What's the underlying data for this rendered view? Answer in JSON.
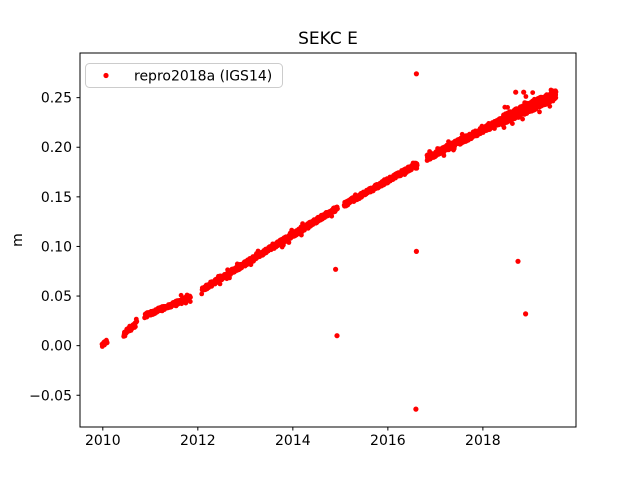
{
  "figure": {
    "background": "#ffffff",
    "frame_color": "#000000"
  },
  "chart_data": {
    "type": "scatter",
    "title": "SEKC E",
    "xlabel": "",
    "ylabel": "m",
    "grid": false,
    "marker_color": "#ff0000",
    "marker_style": "dot",
    "xlim": [
      2009.52,
      2019.96
    ],
    "ylim": [
      -0.082,
      0.295
    ],
    "xticks": [
      {
        "v": 2010,
        "label": "2010"
      },
      {
        "v": 2012,
        "label": "2012"
      },
      {
        "v": 2014,
        "label": "2014"
      },
      {
        "v": 2016,
        "label": "2016"
      },
      {
        "v": 2018,
        "label": "2018"
      }
    ],
    "yticks": [
      {
        "v": -0.05,
        "label": "−0.05"
      },
      {
        "v": 0.0,
        "label": "0.00"
      },
      {
        "v": 0.05,
        "label": "0.05"
      },
      {
        "v": 0.1,
        "label": "0.10"
      },
      {
        "v": 0.15,
        "label": "0.15"
      },
      {
        "v": 0.2,
        "label": "0.20"
      },
      {
        "v": 0.25,
        "label": "0.25"
      }
    ],
    "legend": {
      "position": "upper-left",
      "entries": [
        {
          "label": "repro2018a (IGS14)",
          "marker": "dot",
          "color": "#ff0000"
        }
      ]
    },
    "series": [
      {
        "name": "repro2018a (IGS14)",
        "color": "#ff0000",
        "trend_segments": [
          {
            "x_start": 2009.98,
            "x_end": 2010.1,
            "y_start": 0.0,
            "y_end": 0.005,
            "n_points": 14,
            "scatter": 0.0022
          },
          {
            "x_start": 2010.44,
            "x_end": 2010.72,
            "y_start": 0.012,
            "y_end": 0.023,
            "n_points": 45,
            "scatter": 0.0028
          },
          {
            "x_start": 2010.88,
            "x_end": 2011.85,
            "y_start": 0.03,
            "y_end": 0.049,
            "n_points": 190,
            "scatter": 0.0022
          },
          {
            "x_start": 2012.08,
            "x_end": 2014.94,
            "y_start": 0.056,
            "y_end": 0.139,
            "n_points": 580,
            "scatter": 0.0024
          },
          {
            "x_start": 2015.08,
            "x_end": 2016.62,
            "y_start": 0.142,
            "y_end": 0.183,
            "n_points": 310,
            "scatter": 0.0024
          },
          {
            "x_start": 2016.82,
            "x_end": 2018.4,
            "y_start": 0.189,
            "y_end": 0.227,
            "n_points": 330,
            "scatter": 0.003
          },
          {
            "x_start": 2018.4,
            "x_end": 2019.54,
            "y_start": 0.227,
            "y_end": 0.253,
            "n_points": 430,
            "scatter": 0.005
          }
        ],
        "outliers": [
          [
            2014.9,
            0.077
          ],
          [
            2014.93,
            0.01
          ],
          [
            2016.59,
            -0.064
          ],
          [
            2016.6,
            0.095
          ],
          [
            2016.6,
            0.274
          ],
          [
            2018.69,
            0.2555
          ],
          [
            2018.86,
            0.2555
          ],
          [
            2018.74,
            0.085
          ],
          [
            2018.9,
            0.032
          ]
        ]
      }
    ]
  }
}
